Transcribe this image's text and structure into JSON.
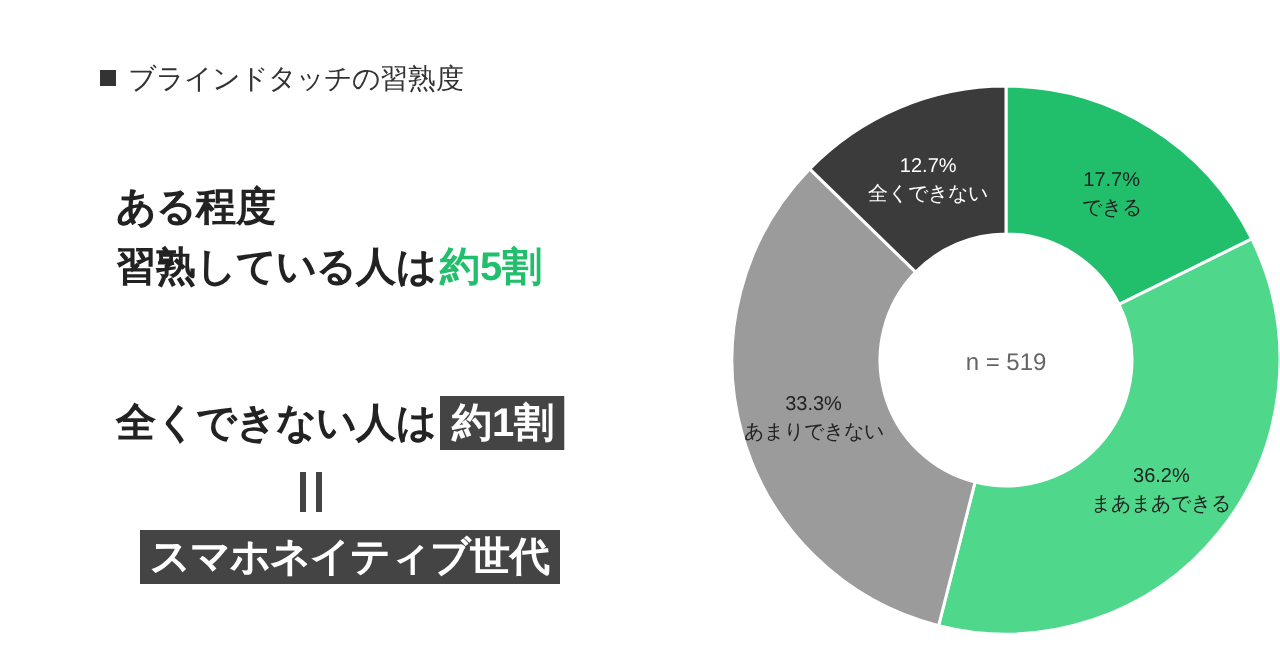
{
  "chart_data": {
    "type": "donut",
    "title": "ブラインドタッチの習熟度",
    "categories": [
      "できる",
      "まあまあできる",
      "あまりできない",
      "全くできない"
    ],
    "values": [
      17.7,
      36.2,
      33.3,
      12.7
    ],
    "value_labels": [
      "17.7%",
      "36.2%",
      "33.3%",
      "12.7%"
    ],
    "colors": [
      "#21bf6b",
      "#4fd88b",
      "#9b9b9b",
      "#3b3b3b"
    ],
    "annotations": [
      "n = 519",
      "ある程度",
      "習熟している人は",
      "約5割",
      "全くできない人は",
      "約1割",
      "スマホネイティブ世代"
    ]
  }
}
